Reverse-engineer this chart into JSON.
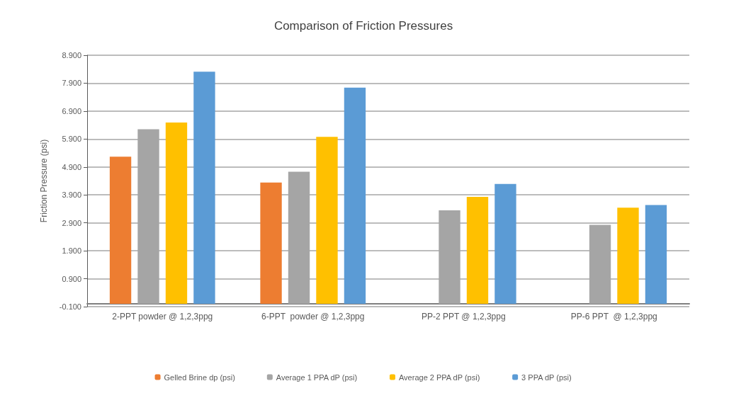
{
  "chart_data": {
    "type": "bar",
    "title": "Comparison of Friction Pressures",
    "ylabel": "Friction Pressure (psi)",
    "categories": [
      "2-PPT powder @ 1,2,3ppg",
      "6-PPT  powder @ 1,2,3ppg",
      "PP-2 PPT @ 1,2,3ppg",
      "PP-6 PPT  @ 1,2,3ppg"
    ],
    "series": [
      {
        "name": "Gelled Brine dp (psi)",
        "color": "#ed7d31",
        "values": [
          5.27,
          4.34,
          null,
          null
        ]
      },
      {
        "name": "Average 1 PPA dP (psi)",
        "color": "#a5a5a5",
        "values": [
          6.25,
          4.73,
          3.35,
          2.83
        ]
      },
      {
        "name": "Average 2 PPA dP (psi)",
        "color": "#ffc000",
        "values": [
          6.49,
          5.98,
          3.83,
          3.44
        ]
      },
      {
        "name": "3 PPA dP (psi)",
        "color": "#5b9bd5",
        "values": [
          8.31,
          7.74,
          4.29,
          3.54
        ]
      }
    ],
    "ylim": [
      -0.1,
      8.9
    ],
    "yticks": [
      {
        "value": -0.1,
        "label": "-0.100"
      },
      {
        "value": 0.9,
        "label": "0.900"
      },
      {
        "value": 1.9,
        "label": "1.900"
      },
      {
        "value": 2.9,
        "label": "2.900"
      },
      {
        "value": 3.9,
        "label": "3.900"
      },
      {
        "value": 4.9,
        "label": "4.900"
      },
      {
        "value": 5.9,
        "label": "5.900"
      },
      {
        "value": 6.9,
        "label": "6.900"
      },
      {
        "value": 7.9,
        "label": "7.900"
      },
      {
        "value": 8.9,
        "label": "8.900"
      }
    ],
    "grid": "y",
    "legend": "bottom"
  }
}
